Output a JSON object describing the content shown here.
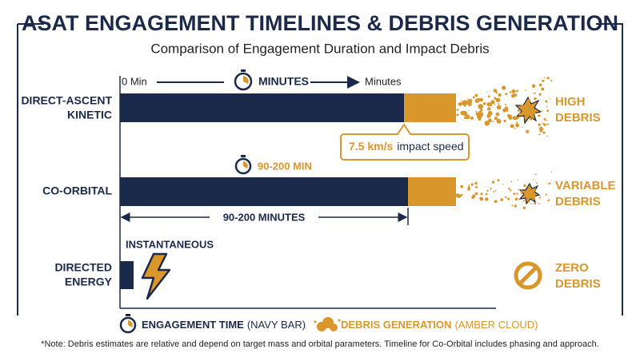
{
  "header": {
    "title": "ASAT ENGAGEMENT TIMELINES & DEBRIS GENERATION",
    "subtitle": "Comparison of Engagement Duration and Impact Debris"
  },
  "axis": {
    "start": "0 Min",
    "unit": "MINUTES",
    "end": "Minutes"
  },
  "rows": [
    {
      "label": [
        "DIRECT-ASCENT",
        "KINETIC"
      ],
      "debris": [
        "HIGH",
        "DEBRIS"
      ],
      "callout": {
        "speed": "7.5 km/s",
        "text": "impact speed"
      }
    },
    {
      "label": [
        "CO-ORBITAL"
      ],
      "debris": [
        "VARIABLE",
        "DEBRIS"
      ],
      "duration_badge": "90-200 MIN",
      "duration_span": "90-200 MINUTES"
    },
    {
      "label": [
        "DIRECTED",
        "ENERGY"
      ],
      "debris": [
        "ZERO",
        "DEBRIS"
      ],
      "duration_badge": "INSTANTANEOUS"
    }
  ],
  "legend": {
    "engagement": {
      "bold": "ENGAGEMENT TIME",
      "plain": "(NAVY BAR)"
    },
    "debris": {
      "bold": "DEBRIS GENERATION",
      "plain": "(AMBER CLOUD)"
    }
  },
  "note": "*Note: Debris estimates are relative and depend on target mass and orbital parameters. Timeline for Co-Orbital includes phasing and approach."
}
